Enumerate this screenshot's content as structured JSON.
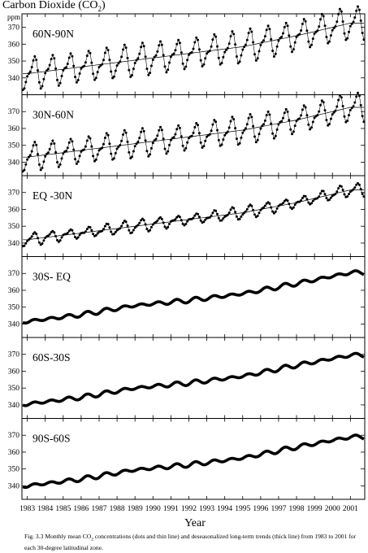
{
  "figure": {
    "title_main": "Carbon Dioxide (CO",
    "title_sub": "2",
    "title_close": ")",
    "caption_prefix": "Fig. 3.3  Monthly mean CO",
    "caption_sub": "2",
    "caption_rest": " concentrations (dots and thin line) and deseasonalized long-term trends (thick line) from 1983 to 2001 for each 30-degree latitudinal zone."
  },
  "chart_data": {
    "type": "line",
    "ylabel": "ppm",
    "xlabel": "Year",
    "x_ticks": [
      "1983",
      "1984",
      "1985",
      "1986",
      "1987",
      "1988",
      "1989",
      "1990",
      "1991",
      "1992",
      "1993",
      "1994",
      "1995",
      "1996",
      "1997",
      "1998",
      "1999",
      "2000",
      "2001"
    ],
    "xlim": [
      1982.7,
      2001.8
    ],
    "grid": false,
    "panels": [
      {
        "label": "60N-90N",
        "ylim": [
          330,
          378
        ],
        "yticks": [
          340,
          350,
          360,
          370
        ],
        "trend_start": 342.5,
        "trend_end": 373.5,
        "amplitude": 15,
        "style": "dots",
        "trend_points": [
          [
            1983,
            342.5
          ],
          [
            1986,
            346.5
          ],
          [
            1989,
            350.5
          ],
          [
            1992,
            354.5
          ],
          [
            1995,
            358.5
          ],
          [
            1998,
            365
          ],
          [
            2001,
            372.5
          ]
        ]
      },
      {
        "label": "30N-60N",
        "ylim": [
          332,
          380
        ],
        "yticks": [
          340,
          350,
          360,
          370
        ],
        "trend_start": 343.5,
        "trend_end": 373.5,
        "amplitude": 13,
        "style": "dots",
        "trend_points": [
          [
            1983,
            343
          ],
          [
            1986,
            347
          ],
          [
            1989,
            351
          ],
          [
            1992,
            355
          ],
          [
            1995,
            359
          ],
          [
            1998,
            365
          ],
          [
            2001,
            372.5
          ]
        ]
      },
      {
        "label": "EQ -30N",
        "ylim": [
          332,
          380
        ],
        "yticks": [
          340,
          350,
          360,
          370
        ],
        "trend_start": 342,
        "trend_end": 372,
        "amplitude": 5.5,
        "style": "dots",
        "trend_points": [
          [
            1983,
            342
          ],
          [
            1986,
            346
          ],
          [
            1989,
            350
          ],
          [
            1992,
            354
          ],
          [
            1995,
            358
          ],
          [
            1998,
            364
          ],
          [
            2001,
            371.5
          ]
        ]
      },
      {
        "label": "30S- EQ",
        "ylim": [
          332,
          380
        ],
        "yticks": [
          340,
          350,
          360,
          370
        ],
        "trend_start": 341.5,
        "trend_end": 371,
        "amplitude": 1,
        "style": "thick",
        "trend_points": [
          [
            1983,
            341.5
          ],
          [
            1986,
            345.5
          ],
          [
            1989,
            351
          ],
          [
            1992,
            354
          ],
          [
            1995,
            358
          ],
          [
            1998,
            364
          ],
          [
            2001,
            370.5
          ]
        ]
      },
      {
        "label": "60S-30S",
        "ylim": [
          332,
          380
        ],
        "yticks": [
          340,
          350,
          360,
          370
        ],
        "trend_start": 340.5,
        "trend_end": 370,
        "amplitude": 1,
        "style": "thick",
        "trend_points": [
          [
            1983,
            340.5
          ],
          [
            1986,
            344.5
          ],
          [
            1989,
            350
          ],
          [
            1992,
            353
          ],
          [
            1995,
            357
          ],
          [
            1998,
            363.5
          ],
          [
            2001,
            369.5
          ]
        ]
      },
      {
        "label": "90S-60S",
        "ylim": [
          332,
          380
        ],
        "yticks": [
          340,
          350,
          360,
          370
        ],
        "trend_start": 340,
        "trend_end": 369.5,
        "amplitude": 1,
        "style": "thick",
        "trend_points": [
          [
            1983,
            340
          ],
          [
            1986,
            344
          ],
          [
            1989,
            349.5
          ],
          [
            1992,
            352.5
          ],
          [
            1995,
            356.5
          ],
          [
            1998,
            363
          ],
          [
            2001,
            369
          ]
        ]
      }
    ]
  }
}
